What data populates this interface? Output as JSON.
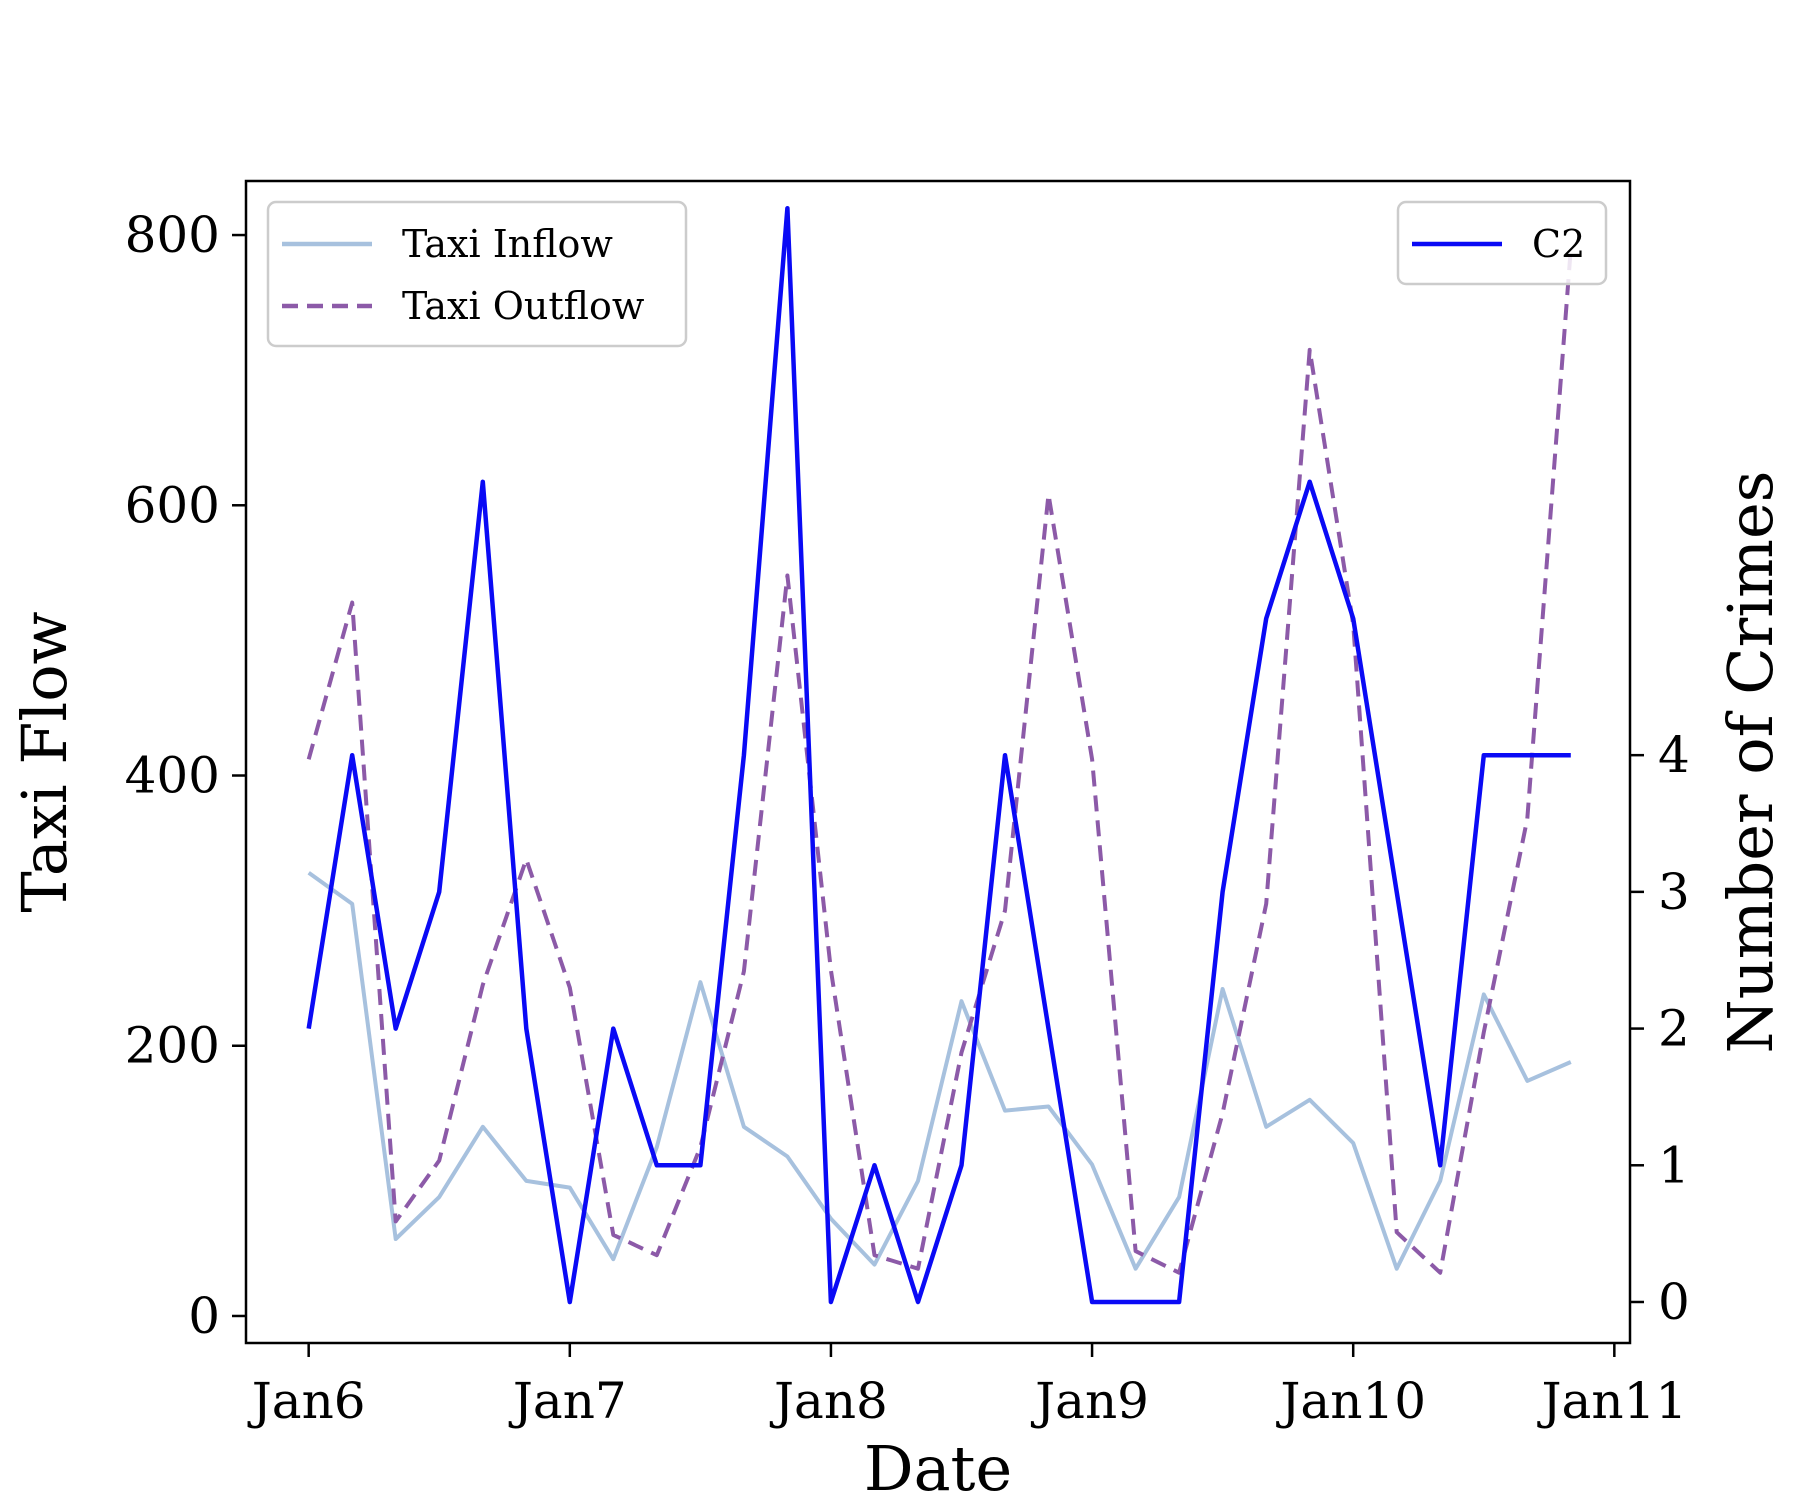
{
  "chart_data": {
    "type": "line",
    "xlabel": "Date",
    "ylabel": "Taxi Flow",
    "ylabel_right": "Number of Crimes",
    "x_ticks": [
      "Jan6",
      "Jan7",
      "Jan8",
      "Jan9",
      "Jan10",
      "Jan11"
    ],
    "x_range_days": [
      5.76,
      11.06
    ],
    "x": [
      6.0,
      6.1667,
      6.3333,
      6.5,
      6.6667,
      6.8333,
      7.0,
      7.1667,
      7.3333,
      7.5,
      7.6667,
      7.8333,
      8.0,
      8.1667,
      8.3333,
      8.5,
      8.6667,
      8.8333,
      9.0,
      9.1667,
      9.3333,
      9.5,
      9.6667,
      9.8333,
      10.0,
      10.1667,
      10.3333,
      10.5,
      10.6667,
      10.8333
    ],
    "y_left": {
      "ylim": [
        -20,
        840
      ],
      "ticks": [
        0,
        200,
        400,
        600,
        800
      ]
    },
    "y_right": {
      "ylim": [
        -0.3,
        8.2
      ],
      "ticks": [
        0,
        1,
        2,
        3,
        4
      ]
    },
    "grid": false,
    "series": [
      {
        "name": "Taxi Inflow",
        "axis": "left",
        "color": "#a7c1de",
        "style": "solid",
        "values": [
          328,
          305,
          57,
          88,
          140,
          100,
          95,
          42,
          125,
          247,
          140,
          118,
          72,
          38,
          100,
          233,
          152,
          155,
          112,
          35,
          88,
          242,
          140,
          160,
          128,
          35,
          100,
          238,
          174,
          188
        ]
      },
      {
        "name": "Taxi Outflow",
        "axis": "left",
        "color": "#8c5aa8",
        "style": "dashed",
        "values": [
          412,
          528,
          70,
          115,
          245,
          338,
          243,
          60,
          45,
          125,
          255,
          548,
          256,
          45,
          35,
          195,
          300,
          608,
          412,
          48,
          32,
          150,
          305,
          715,
          512,
          62,
          32,
          210,
          368,
          790
        ]
      },
      {
        "name": "C2",
        "axis": "right",
        "color": "#0a0af5",
        "style": "solid",
        "values": [
          2,
          4,
          2,
          3,
          6,
          2,
          0,
          2,
          1,
          1,
          4,
          8,
          0,
          1,
          0,
          1,
          4,
          2,
          0,
          0,
          0,
          3,
          5,
          6,
          5,
          3,
          1,
          4,
          4,
          4
        ]
      }
    ],
    "legends": [
      {
        "placement": "upper-left",
        "entries": [
          "Taxi Inflow",
          "Taxi Outflow"
        ]
      },
      {
        "placement": "upper-right",
        "entries": [
          "C2"
        ]
      }
    ]
  }
}
